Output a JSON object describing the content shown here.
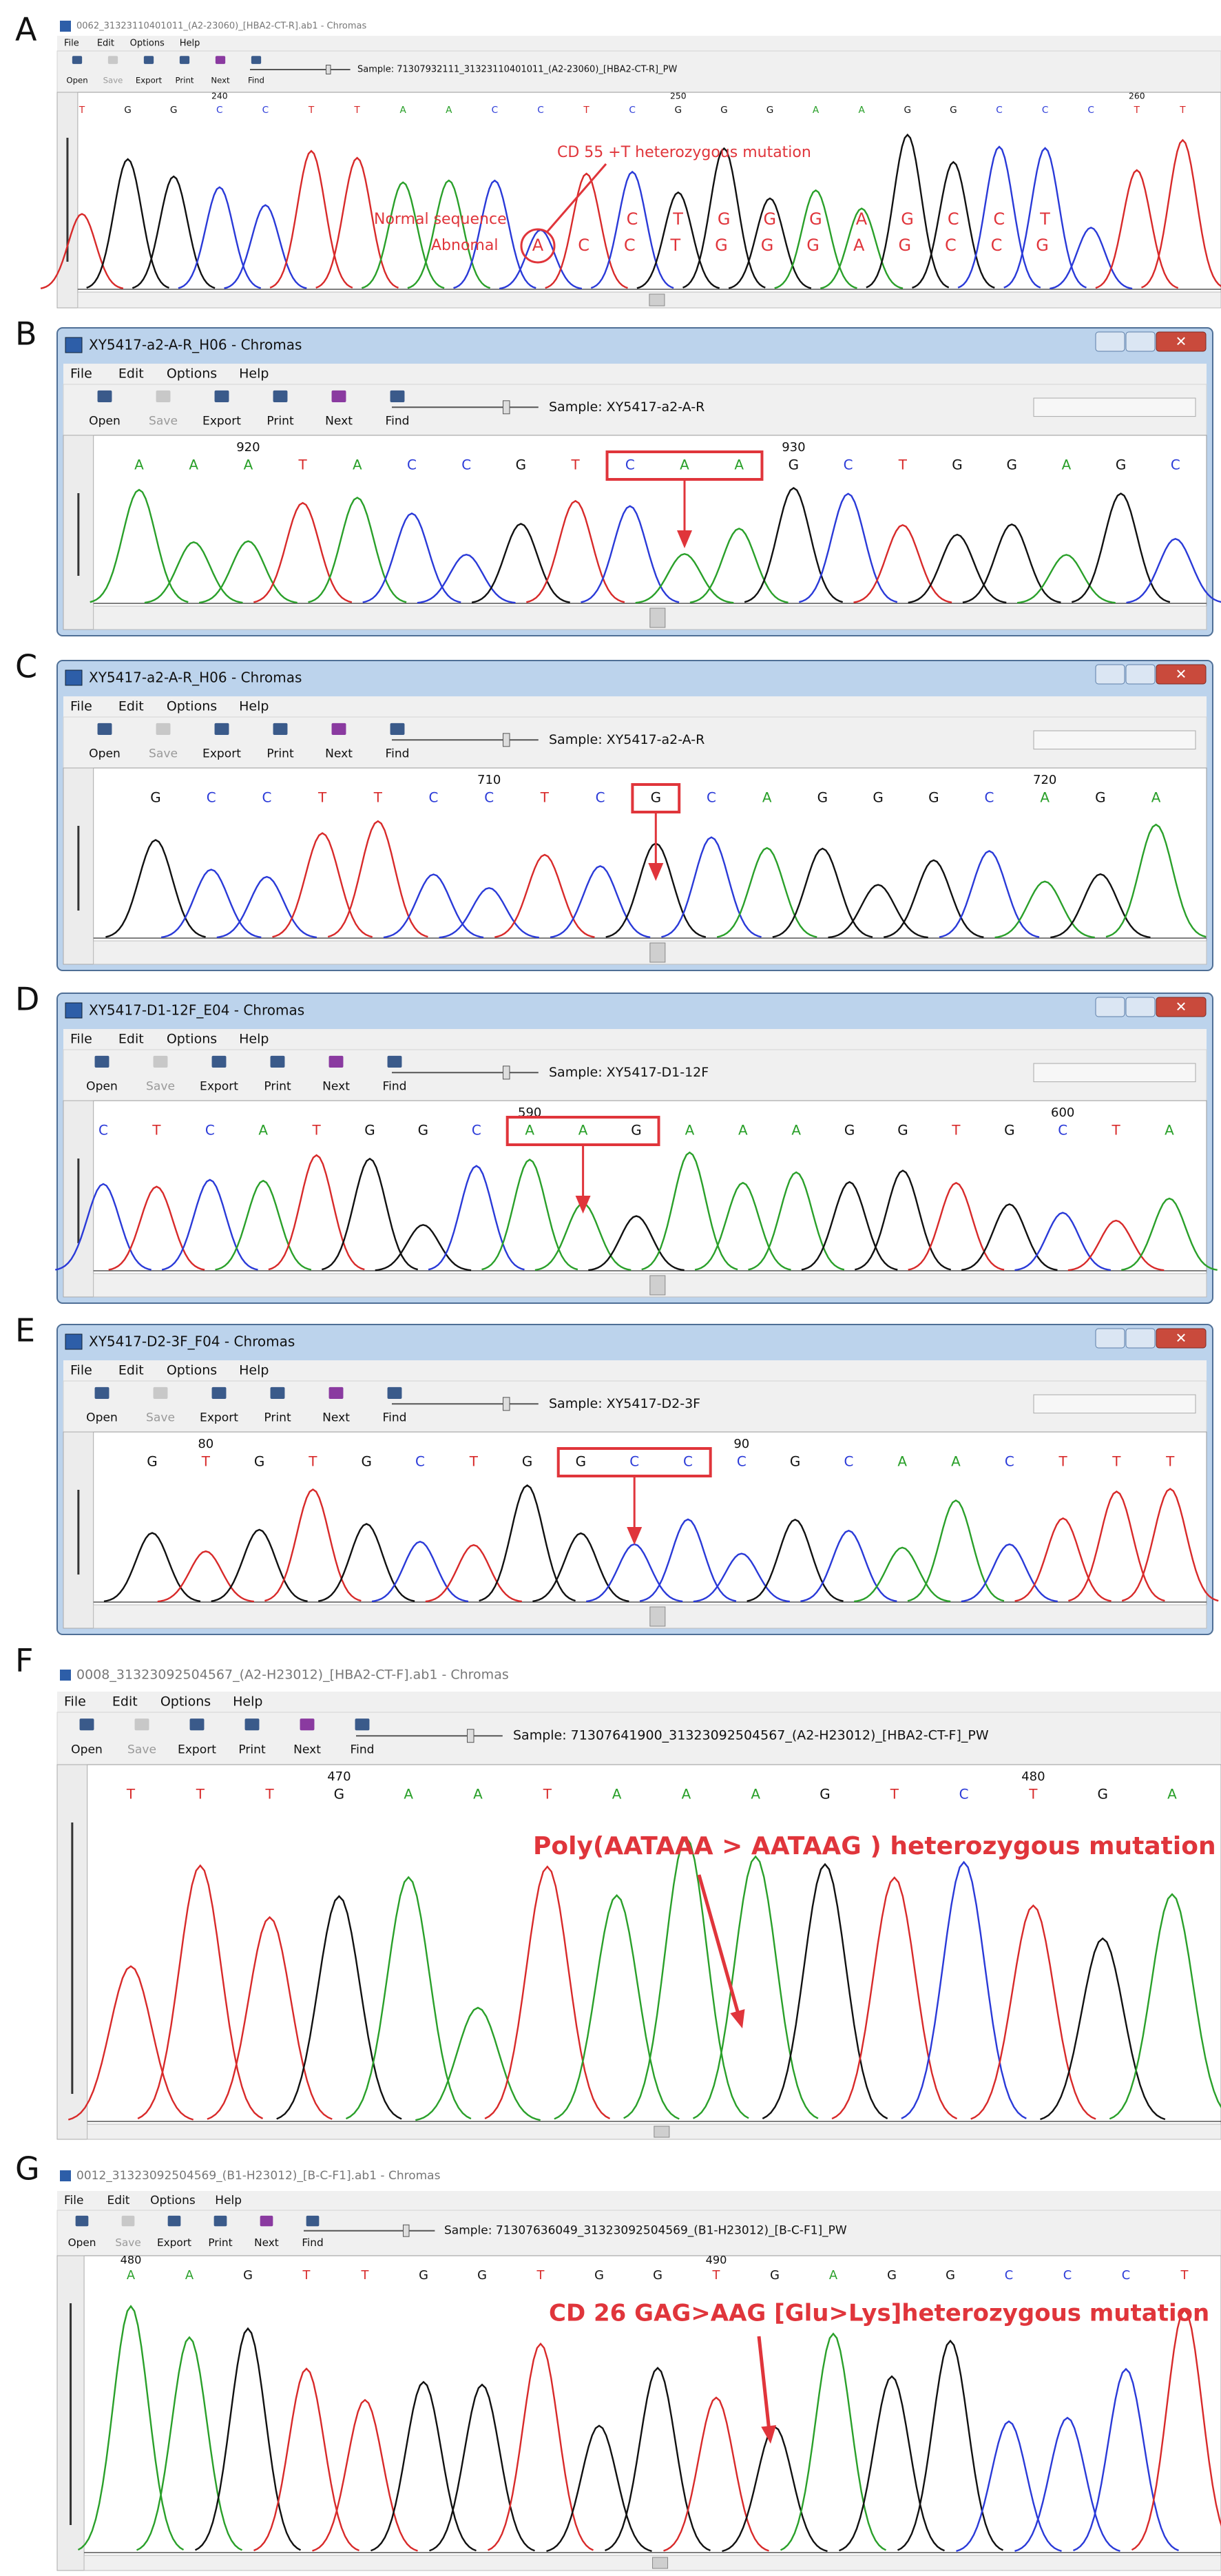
{
  "menu": [
    "File",
    "Edit",
    "Options",
    "Help"
  ],
  "toolbar": [
    "Open",
    "Save",
    "Export",
    "Print",
    "Next",
    "Find"
  ],
  "panels": [
    {
      "label": "A",
      "title": "0062_31323110401011_(A2-23060)_[HBA2-CT-R].ab1 - Chromas",
      "sample": "Sample: 71307932111_31323110401011_(A2-23060)_[HBA2-CT-R]_PW",
      "ruler": [
        240,
        250,
        260
      ],
      "bases": [
        "T",
        "G",
        "G",
        "C",
        "C",
        "T",
        "T",
        "A",
        "A",
        "C",
        "C",
        "T",
        "C",
        "G",
        "G",
        "G",
        "A",
        "A",
        "G",
        "G",
        "C",
        "C",
        "C",
        "T",
        "T"
      ],
      "mutation": "CD 55 +T heterozygous mutation",
      "normal_label": "Normal sequence",
      "normal_bases": [
        "C",
        "T",
        "G",
        "G",
        "G",
        "A",
        "G",
        "C",
        "C",
        "T"
      ],
      "abnormal_label": "Abnomal",
      "abnormal_bases": [
        "A",
        "C",
        "C",
        "T",
        "G",
        "G",
        "G",
        "A",
        "G",
        "C",
        "C",
        "G"
      ]
    },
    {
      "label": "B",
      "title": "XY5417-a2-A-R_H06 - Chromas",
      "sample": "Sample: XY5417-a2-A-R",
      "ruler": [
        920,
        930
      ],
      "bases": [
        "A",
        "A",
        "A",
        "T",
        "A",
        "C",
        "C",
        "G",
        "T",
        "C",
        "A",
        "A",
        "G",
        "C",
        "T",
        "G",
        "G",
        "A",
        "G",
        "C"
      ]
    },
    {
      "label": "C",
      "title": "XY5417-a2-A-R_H06 - Chromas",
      "sample": "Sample: XY5417-a2-A-R",
      "ruler": [
        710,
        720
      ],
      "bases": [
        "G",
        "C",
        "C",
        "T",
        "T",
        "C",
        "C",
        "T",
        "C",
        "G",
        "C",
        "A",
        "G",
        "G",
        "G",
        "C",
        "A",
        "G",
        "A"
      ]
    },
    {
      "label": "D",
      "title": "XY5417-D1-12F_E04 - Chromas",
      "sample": "Sample: XY5417-D1-12F",
      "ruler": [
        590,
        600
      ],
      "bases": [
        "C",
        "T",
        "C",
        "A",
        "T",
        "G",
        "G",
        "C",
        "A",
        "A",
        "G",
        "A",
        "A",
        "A",
        "G",
        "G",
        "T",
        "G",
        "C",
        "T",
        "A"
      ]
    },
    {
      "label": "E",
      "title": "XY5417-D2-3F_F04 - Chromas",
      "sample": "Sample: XY5417-D2-3F",
      "ruler": [
        80,
        90
      ],
      "bases": [
        "G",
        "T",
        "G",
        "T",
        "G",
        "C",
        "T",
        "G",
        "G",
        "C",
        "C",
        "C",
        "G",
        "C",
        "A",
        "A",
        "C",
        "T",
        "T",
        "T"
      ]
    },
    {
      "label": "F",
      "title": "0008_31323092504567_(A2-H23012)_[HBA2-CT-F].ab1 - Chromas",
      "sample": "Sample: 71307641900_31323092504567_(A2-H23012)_[HBA2-CT-F]_PW",
      "ruler": [
        470,
        480
      ],
      "bases": [
        "T",
        "T",
        "T",
        "G",
        "A",
        "A",
        "T",
        "A",
        "A",
        "A",
        "G",
        "T",
        "C",
        "T",
        "G",
        "A"
      ],
      "mutation": "Poly(AATAAA > AATAAG ) heterozygous mutation"
    },
    {
      "label": "G",
      "title": "0012_31323092504569_(B1-H23012)_[B-C-F1].ab1 - Chromas",
      "sample": "Sample: 71307636049_31323092504569_(B1-H23012)_[B-C-F1]_PW",
      "ruler": [
        480,
        490
      ],
      "bases": [
        "A",
        "A",
        "G",
        "T",
        "T",
        "G",
        "G",
        "T",
        "G",
        "G",
        "T",
        "G",
        "A",
        "G",
        "G",
        "C",
        "C",
        "C",
        "T"
      ],
      "mutation": "CD 26 GAG>AAG [Glu>Lys]heterozygous mutation"
    }
  ]
}
